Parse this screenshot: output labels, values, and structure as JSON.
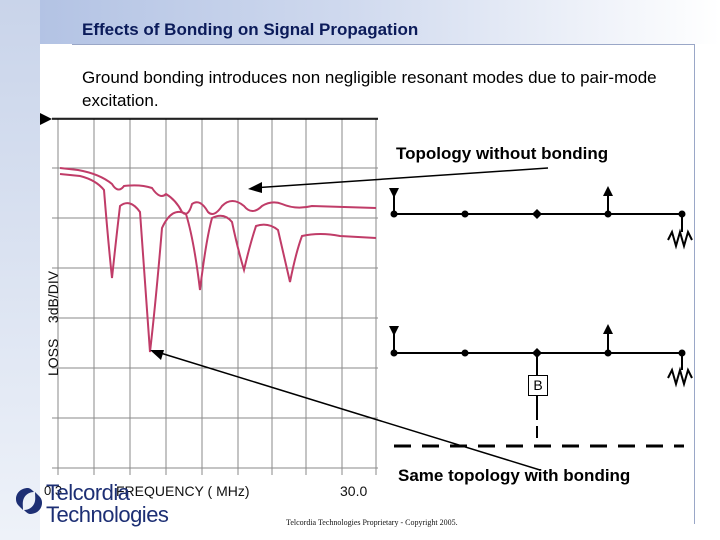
{
  "slide": {
    "title": "Effects of Bonding on Signal Propagation",
    "intro": "Ground bonding introduces non negligible resonant modes due to pair-mode excitation.",
    "footer": "Telcordia Technologies Proprietary - Copyright 2005."
  },
  "plot": {
    "ylabel": "LOSS    3dB/DIV",
    "x_start": "0.3",
    "xlabel": "FREQUENCY ( MHz)",
    "x_end": "30.0",
    "trace_color": "#c03c68",
    "grid_color": "#8a8a8a"
  },
  "diagrams": {
    "top_caption": "Topology without bonding",
    "bottom_caption": "Same topology with bonding",
    "bond_label": "B"
  },
  "logo": {
    "line1": "Telcordia",
    "line2": "Technologies"
  },
  "colors": {
    "title": "#0b1b5a",
    "logo": "#1d2f74",
    "header_gradient_start": "#b3c3e4"
  }
}
